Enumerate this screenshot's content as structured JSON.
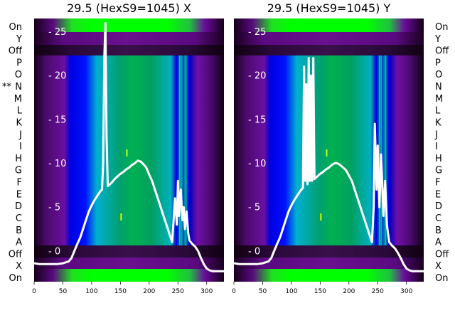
{
  "chart_data": [
    {
      "type": "heatmap",
      "title": "29.5 (HexS9=1045) X",
      "xlim": [
        0,
        330
      ],
      "ylim": [
        -3.5,
        26.5
      ],
      "x_ticks": [
        0,
        50,
        100,
        150,
        200,
        250,
        300
      ],
      "y_ticks": [
        0,
        5,
        10,
        15,
        20,
        25
      ],
      "row_labels": [
        "On",
        "X",
        "Off",
        "A",
        "B",
        "C",
        "D",
        "E",
        "F",
        "G",
        "H",
        "I",
        "J",
        "K",
        "L",
        "M",
        "N",
        "O",
        "P",
        "Off",
        "Y",
        "On"
      ],
      "marked_row_label": "**",
      "colors": {
        "bright": "#00ff00",
        "mid": "#00a060",
        "cyan": "#00b0c0",
        "blue": "#0000e0",
        "purple": "#6a0a9a",
        "dark": "#1a0020",
        "curve": "#ffffff"
      },
      "series": [
        {
          "x": [
            0,
            10,
            20,
            30,
            40,
            50,
            60,
            65,
            70,
            75,
            80,
            85,
            90,
            95,
            100,
            105,
            110,
            115,
            118,
            120,
            122,
            124,
            126,
            128,
            130,
            135,
            140,
            145,
            150,
            155,
            160,
            165,
            170,
            175,
            180,
            185,
            190,
            195,
            200,
            205,
            210,
            215,
            220,
            225,
            230,
            235,
            240,
            243,
            245,
            248,
            250,
            252,
            255,
            258,
            260,
            262,
            265,
            268,
            270,
            275,
            280,
            285,
            290,
            295,
            300,
            305,
            310,
            315,
            320,
            325,
            330
          ],
          "y": [
            -1.4,
            -1.5,
            -1.5,
            -1.5,
            -1.5,
            -1.4,
            -1.2,
            -0.8,
            0.0,
            0.8,
            1.5,
            2.5,
            3.5,
            4.5,
            5.2,
            5.8,
            6.3,
            6.8,
            7.0,
            10,
            22,
            26,
            13,
            7.4,
            7.5,
            7.8,
            8.2,
            8.5,
            8.8,
            9.0,
            9.3,
            9.5,
            9.8,
            10.0,
            10.3,
            10.2,
            9.9,
            9.5,
            8.7,
            8.0,
            7.0,
            6.0,
            5.0,
            4.0,
            3.0,
            2.0,
            1.0,
            4.0,
            6.0,
            3.0,
            8.0,
            4.0,
            7.0,
            3.5,
            5.0,
            2.5,
            4.5,
            2.0,
            1.2,
            0.8,
            0.5,
            0.0,
            -0.8,
            -1.5,
            -2.0,
            -2.2,
            -2.3,
            -2.3,
            -2.3,
            -2.3,
            -2.3
          ]
        }
      ]
    },
    {
      "type": "heatmap",
      "title": "29.5 (HexS9=1045) Y",
      "xlim": [
        0,
        330
      ],
      "ylim": [
        -3.5,
        26.5
      ],
      "x_ticks": [
        0,
        50,
        100,
        150,
        200,
        250,
        300
      ],
      "y_ticks": [
        0,
        5,
        10,
        15,
        20,
        25
      ],
      "row_labels": [
        "On",
        "X",
        "Off",
        "A",
        "B",
        "C",
        "D",
        "E",
        "F",
        "G",
        "H",
        "I",
        "J",
        "K",
        "L",
        "M",
        "N",
        "O",
        "P",
        "Off",
        "Y",
        "On"
      ],
      "colors": {
        "bright": "#00ff00",
        "mid": "#00a060",
        "cyan": "#00b0c0",
        "blue": "#0000e0",
        "purple": "#6a0a9a",
        "dark": "#1a0020",
        "curve": "#ffffff"
      },
      "series": [
        {
          "x": [
            0,
            10,
            20,
            30,
            40,
            50,
            60,
            65,
            70,
            75,
            80,
            85,
            90,
            95,
            100,
            105,
            110,
            115,
            120,
            122,
            124,
            126,
            128,
            130,
            132,
            134,
            136,
            138,
            140,
            145,
            150,
            155,
            160,
            165,
            170,
            175,
            180,
            185,
            190,
            195,
            200,
            205,
            210,
            215,
            220,
            225,
            230,
            235,
            240,
            243,
            245,
            248,
            250,
            253,
            256,
            260,
            263,
            266,
            270,
            275,
            280,
            285,
            290,
            295,
            300,
            305,
            310,
            315,
            320,
            325,
            330
          ],
          "y": [
            -1.4,
            -1.5,
            -1.5,
            -1.5,
            -1.5,
            -1.4,
            -1.2,
            -0.8,
            0.0,
            0.8,
            1.5,
            2.5,
            3.5,
            4.5,
            5.2,
            5.8,
            6.3,
            6.8,
            7.2,
            21,
            8,
            19,
            7.6,
            22,
            8,
            20,
            8.0,
            22,
            8.2,
            8.5,
            8.8,
            9.0,
            9.3,
            9.5,
            9.8,
            10.0,
            10.0,
            9.8,
            9.5,
            9.2,
            8.6,
            8.0,
            7.0,
            6.0,
            5.0,
            4.0,
            3.0,
            2.0,
            1.0,
            5.0,
            14.5,
            7.0,
            12.0,
            5.0,
            11.0,
            4.0,
            8.0,
            3.0,
            1.0,
            0.6,
            0.3,
            -0.2,
            -0.8,
            -1.5,
            -2.0,
            -2.2,
            -2.3,
            -2.3,
            -2.3,
            -2.3,
            -2.3
          ]
        }
      ]
    }
  ]
}
